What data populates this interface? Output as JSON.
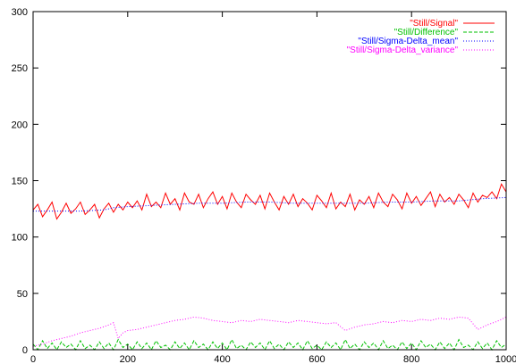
{
  "chart_data": {
    "type": "line",
    "title": "",
    "xlabel": "",
    "ylabel": "",
    "xlim": [
      0,
      1000
    ],
    "ylim": [
      0,
      300
    ],
    "x_ticks": [
      0,
      200,
      400,
      600,
      800,
      1000
    ],
    "y_ticks": [
      0,
      50,
      100,
      150,
      200,
      250,
      300
    ],
    "x_tick_labels": [
      "0",
      "200",
      "400",
      "600",
      "800",
      "1000"
    ],
    "y_tick_labels": [
      "0",
      "50",
      "100",
      "150",
      "200",
      "250",
      "300"
    ],
    "grid": false,
    "legend_position": "top-right",
    "series": [
      {
        "name": "\"Still/Signal\"",
        "color": "#ff0000",
        "style": "solid",
        "x": [
          0,
          10,
          20,
          30,
          40,
          50,
          60,
          70,
          80,
          90,
          100,
          110,
          120,
          130,
          140,
          150,
          160,
          170,
          180,
          190,
          200,
          210,
          220,
          230,
          240,
          250,
          260,
          270,
          280,
          290,
          300,
          310,
          320,
          330,
          340,
          350,
          360,
          370,
          380,
          390,
          400,
          410,
          420,
          430,
          440,
          450,
          460,
          470,
          480,
          490,
          500,
          510,
          520,
          530,
          540,
          550,
          560,
          570,
          580,
          590,
          600,
          610,
          620,
          630,
          640,
          650,
          660,
          670,
          680,
          690,
          700,
          710,
          720,
          730,
          740,
          750,
          760,
          770,
          780,
          790,
          800,
          810,
          820,
          830,
          840,
          850,
          860,
          870,
          880,
          890,
          900,
          910,
          920,
          930,
          940,
          950,
          960,
          970,
          980,
          990,
          1000
        ],
        "y": [
          124,
          129,
          118,
          124,
          131,
          116,
          122,
          130,
          121,
          125,
          131,
          120,
          124,
          129,
          117,
          125,
          130,
          122,
          129,
          124,
          131,
          126,
          132,
          124,
          138,
          127,
          131,
          126,
          139,
          129,
          134,
          124,
          139,
          131,
          129,
          138,
          126,
          134,
          140,
          129,
          136,
          125,
          139,
          131,
          126,
          138,
          133,
          129,
          137,
          125,
          139,
          131,
          124,
          136,
          129,
          138,
          127,
          134,
          130,
          124,
          137,
          132,
          126,
          139,
          125,
          131,
          127,
          138,
          124,
          133,
          129,
          136,
          126,
          139,
          131,
          127,
          138,
          133,
          125,
          139,
          130,
          136,
          128,
          134,
          140,
          127,
          138,
          131,
          135,
          129,
          138,
          133,
          126,
          139,
          131,
          137,
          135,
          140,
          134,
          147,
          140
        ]
      },
      {
        "name": "\"Still/Difference\"",
        "color": "#00c000",
        "style": "dashed",
        "x": [
          0,
          10,
          20,
          30,
          40,
          50,
          60,
          70,
          80,
          90,
          100,
          110,
          120,
          130,
          140,
          150,
          160,
          170,
          180,
          190,
          200,
          210,
          220,
          230,
          240,
          250,
          260,
          270,
          280,
          290,
          300,
          310,
          320,
          330,
          340,
          350,
          360,
          370,
          380,
          390,
          400,
          410,
          420,
          430,
          440,
          450,
          460,
          470,
          480,
          490,
          500,
          510,
          520,
          530,
          540,
          550,
          560,
          570,
          580,
          590,
          600,
          610,
          620,
          630,
          640,
          650,
          660,
          670,
          680,
          690,
          700,
          710,
          720,
          730,
          740,
          750,
          760,
          770,
          780,
          790,
          800,
          810,
          820,
          830,
          840,
          850,
          860,
          870,
          880,
          890,
          900,
          910,
          920,
          930,
          940,
          950,
          960,
          970,
          980,
          990,
          1000
        ],
        "y": [
          5,
          0,
          8,
          1,
          6,
          0,
          7,
          2,
          5,
          0,
          8,
          1,
          4,
          0,
          7,
          1,
          6,
          0,
          9,
          2,
          5,
          0,
          7,
          1,
          6,
          0,
          8,
          2,
          4,
          0,
          7,
          1,
          6,
          0,
          8,
          2,
          5,
          0,
          7,
          1,
          6,
          0,
          9,
          1,
          4,
          0,
          7,
          2,
          6,
          0,
          8,
          1,
          5,
          0,
          7,
          2,
          6,
          0,
          8,
          1,
          4,
          0,
          7,
          2,
          6,
          0,
          9,
          1,
          5,
          0,
          7,
          2,
          6,
          0,
          8,
          1,
          4,
          0,
          7,
          1,
          6,
          0,
          8,
          2,
          5,
          0,
          7,
          1,
          6,
          0,
          9,
          2,
          4,
          0,
          7,
          1,
          6,
          0,
          8,
          2,
          5
        ]
      },
      {
        "name": "\"Still/Sigma-Delta_mean\"",
        "color": "#0000ff",
        "style": "dotted",
        "x": [
          0,
          50,
          100,
          150,
          170,
          200,
          250,
          300,
          350,
          400,
          450,
          500,
          550,
          600,
          650,
          700,
          750,
          800,
          850,
          900,
          950,
          1000
        ],
        "y": [
          123,
          123,
          123,
          124,
          126,
          127,
          128,
          129,
          130,
          130,
          131,
          131,
          130,
          130,
          130,
          130,
          131,
          131,
          132,
          132,
          134,
          135
        ]
      },
      {
        "name": "\"Still/Sigma-Delta_variance\"",
        "color": "#ff00ff",
        "style": "dotted",
        "x": [
          0,
          20,
          40,
          60,
          80,
          100,
          120,
          140,
          160,
          170,
          180,
          190,
          200,
          220,
          240,
          260,
          280,
          300,
          320,
          340,
          360,
          380,
          400,
          420,
          440,
          460,
          480,
          500,
          520,
          540,
          560,
          580,
          600,
          620,
          640,
          660,
          680,
          700,
          720,
          740,
          760,
          780,
          800,
          820,
          840,
          860,
          880,
          900,
          920,
          940,
          960,
          980,
          1000
        ],
        "y": [
          3,
          5,
          8,
          10,
          12,
          15,
          17,
          19,
          22,
          24,
          10,
          15,
          17,
          18,
          20,
          22,
          24,
          26,
          27,
          29,
          28,
          26,
          25,
          24,
          26,
          25,
          27,
          26,
          25,
          24,
          26,
          25,
          24,
          23,
          24,
          17,
          20,
          22,
          23,
          25,
          24,
          26,
          25,
          27,
          26,
          28,
          27,
          29,
          28,
          18,
          22,
          25,
          29
        ]
      }
    ]
  }
}
